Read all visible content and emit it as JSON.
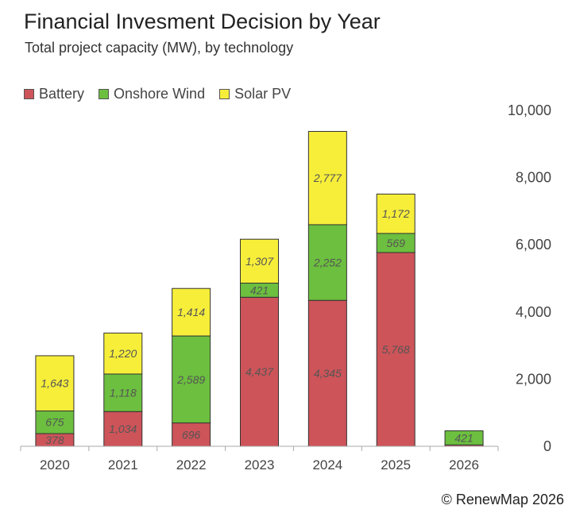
{
  "title": "Financial Invesment Decision by Year",
  "subtitle": "Total project capacity (MW), by technology",
  "credit": "© RenewMap 2026",
  "chart_data": {
    "type": "bar",
    "stacked": true,
    "title": "Financial Invesment Decision by Year",
    "subtitle": "Total project capacity (MW), by technology",
    "categories": [
      "2020",
      "2021",
      "2022",
      "2023",
      "2024",
      "2025",
      "2026"
    ],
    "series": [
      {
        "name": "Battery",
        "color": "#cd5459",
        "values": [
          378,
          1034,
          696,
          4437,
          4345,
          5768,
          40
        ],
        "labels": [
          "378",
          "1,034",
          "696",
          "4,437",
          "4,345",
          "5,768",
          ""
        ]
      },
      {
        "name": "Onshore Wind",
        "color": "#6cbf3f",
        "values": [
          675,
          1118,
          2589,
          421,
          2252,
          569,
          421
        ],
        "labels": [
          "675",
          "1,118",
          "2,589",
          "421",
          "2,252",
          "569",
          "421"
        ]
      },
      {
        "name": "Solar PV",
        "color": "#f7ee3a",
        "values": [
          1643,
          1220,
          1414,
          1307,
          2777,
          1172,
          0
        ],
        "labels": [
          "1,643",
          "1,220",
          "1,414",
          "1,307",
          "2,777",
          "1,172",
          ""
        ]
      }
    ],
    "ylim": [
      0,
      10000
    ],
    "yticks": [
      0,
      2000,
      4000,
      6000,
      8000,
      10000
    ],
    "ytick_labels": [
      "0",
      "2,000",
      "4,000",
      "6,000",
      "8,000",
      "10,000"
    ],
    "y_axis_side": "right",
    "legend_position": "top-left",
    "grid": false
  }
}
